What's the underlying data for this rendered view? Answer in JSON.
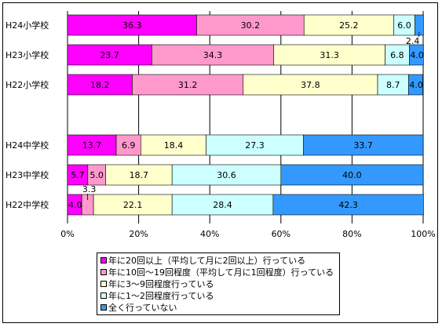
{
  "chart_data": {
    "type": "bar",
    "orientation": "horizontal",
    "stacked": true,
    "title": "",
    "xlabel": "",
    "ylabel": "",
    "xlim": [
      0,
      100
    ],
    "x_ticks": [
      "0%",
      "20%",
      "40%",
      "60%",
      "80%",
      "100%"
    ],
    "grid": true,
    "legend_position": "bottom",
    "categories": [
      "H24小学校",
      "H23小学校",
      "H22小学校",
      "H24中学校",
      "H23中学校",
      "H22中学校"
    ],
    "series": [
      {
        "name": "年に20回以上（平均して月に2回以上）行っている",
        "color": "#ff00ff",
        "values": [
          36.3,
          23.7,
          18.2,
          13.7,
          5.7,
          4.0
        ]
      },
      {
        "name": "年に10回～19回程度（平均して月に1回程度）行っている",
        "color": "#ff99cc",
        "values": [
          30.2,
          34.3,
          31.2,
          6.9,
          5.0,
          3.3
        ]
      },
      {
        "name": "年に3～9回程度行っている",
        "color": "#ffffcc",
        "values": [
          25.2,
          31.3,
          37.8,
          18.4,
          18.7,
          22.1
        ]
      },
      {
        "name": "年に1～2回程度行っている",
        "color": "#ccffff",
        "values": [
          6.0,
          6.8,
          8.7,
          27.3,
          30.6,
          28.4
        ]
      },
      {
        "name": "全く行っていない",
        "color": "#3399ff",
        "values": [
          2.4,
          4.0,
          4.0,
          33.7,
          40.0,
          42.3
        ]
      }
    ],
    "value_labels": [
      [
        "36.3",
        "30.2",
        "25.2",
        "6.0",
        "2.4"
      ],
      [
        "23.7",
        "34.3",
        "31.3",
        "6.8",
        "4.0"
      ],
      [
        "18.2",
        "31.2",
        "37.8",
        "8.7",
        "4.0"
      ],
      [
        "13.7",
        "6.9",
        "18.4",
        "27.3",
        "33.7"
      ],
      [
        "5.7",
        "5.0",
        "18.7",
        "30.6",
        "40.0"
      ],
      [
        "4.0",
        "3.3",
        "22.1",
        "28.4",
        "42.3"
      ]
    ]
  }
}
